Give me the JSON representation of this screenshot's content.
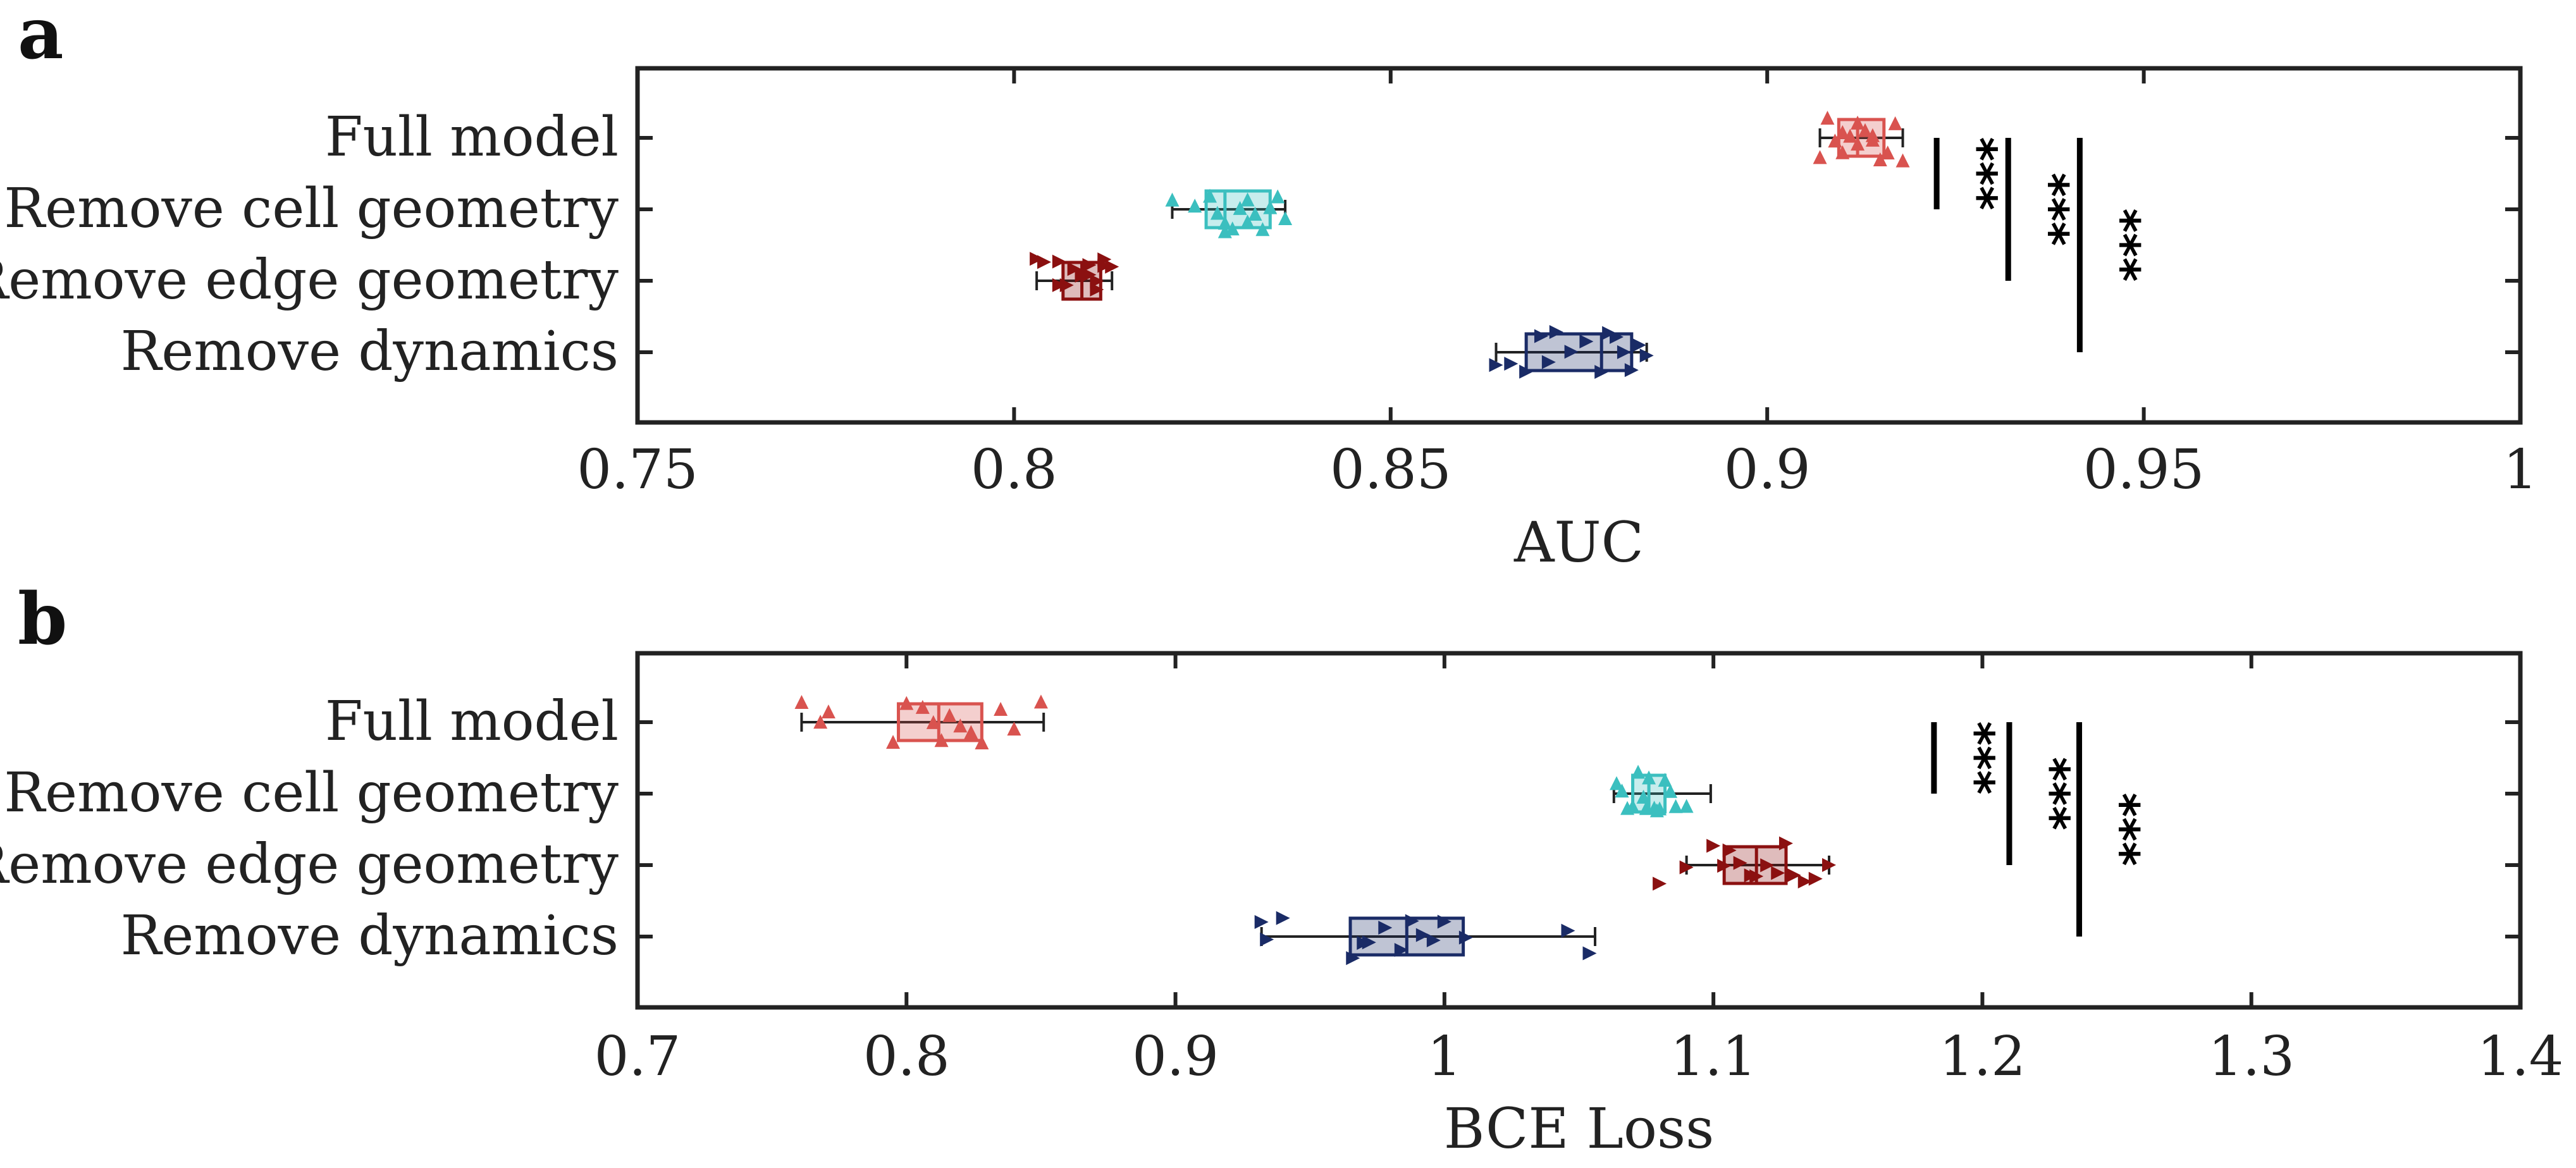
{
  "chart_data": [
    {
      "panel": "a",
      "type": "boxplot",
      "orientation": "horizontal",
      "xlabel": "AUC",
      "xlim": [
        0.75,
        1.0
      ],
      "xticks": [
        0.75,
        0.8,
        0.85,
        0.9,
        0.95,
        1.0
      ],
      "xtick_labels": [
        "0.75",
        "0.8",
        "0.85",
        "0.9",
        "0.95",
        "1"
      ],
      "categories": [
        "Full model",
        "Remove cell geometry",
        "Remove edge geometry",
        "Remove dynamics"
      ],
      "series": [
        {
          "name": "Full model",
          "color": "#d9534f",
          "marker": "triangle-up",
          "whisker_low": 0.907,
          "q1": 0.9095,
          "median": 0.912,
          "q3": 0.9155,
          "whisker_high": 0.918,
          "points": [
            0.907,
            0.908,
            0.909,
            0.91,
            0.911,
            0.912,
            0.912,
            0.913,
            0.914,
            0.915,
            0.916,
            0.917,
            0.918,
            0.91,
            0.914
          ]
        },
        {
          "name": "Remove cell geometry",
          "color": "#3bbfbf",
          "marker": "triangle-up",
          "whisker_low": 0.821,
          "q1": 0.8255,
          "median": 0.828,
          "q3": 0.834,
          "whisker_high": 0.836,
          "points": [
            0.821,
            0.824,
            0.826,
            0.827,
            0.828,
            0.829,
            0.83,
            0.831,
            0.832,
            0.833,
            0.834,
            0.835,
            0.836,
            0.828,
            0.831
          ]
        },
        {
          "name": "Remove edge geometry",
          "color": "#8b1010",
          "marker": "triangle-right",
          "whisker_low": 0.803,
          "q1": 0.8065,
          "median": 0.809,
          "q3": 0.8115,
          "whisker_high": 0.813,
          "points": [
            0.803,
            0.804,
            0.806,
            0.807,
            0.808,
            0.809,
            0.809,
            0.81,
            0.811,
            0.812,
            0.812,
            0.813,
            0.806,
            0.81,
            0.811
          ]
        },
        {
          "name": "Remove dynamics",
          "color": "#1a2b66",
          "marker": "triangle-right",
          "whisker_low": 0.864,
          "q1": 0.868,
          "median": 0.878,
          "q3": 0.882,
          "whisker_high": 0.884,
          "points": [
            0.864,
            0.866,
            0.868,
            0.87,
            0.872,
            0.874,
            0.876,
            0.878,
            0.879,
            0.88,
            0.881,
            0.882,
            0.883,
            0.884,
            0.871
          ]
        }
      ],
      "significance": [
        {
          "from": "Full model",
          "to": "Remove cell geometry",
          "x": 0.9225,
          "label": "***"
        },
        {
          "from": "Full model",
          "to": "Remove edge geometry",
          "x": 0.932,
          "label": "***"
        },
        {
          "from": "Full model",
          "to": "Remove dynamics",
          "x": 0.9415,
          "label": "***"
        }
      ]
    },
    {
      "panel": "b",
      "type": "boxplot",
      "orientation": "horizontal",
      "xlabel": "BCE Loss",
      "xlim": [
        0.7,
        1.4
      ],
      "xticks": [
        0.7,
        0.8,
        0.9,
        1.0,
        1.1,
        1.2,
        1.3,
        1.4
      ],
      "xtick_labels": [
        "0.7",
        "0.8",
        "0.9",
        "1",
        "1.1",
        "1.2",
        "1.3",
        "1.4"
      ],
      "categories": [
        "Full model",
        "Remove cell geometry",
        "Remove edge geometry",
        "Remove dynamics"
      ],
      "series": [
        {
          "name": "Full model",
          "color": "#d9534f",
          "marker": "triangle-up",
          "whisker_low": 0.761,
          "q1": 0.797,
          "median": 0.812,
          "q3": 0.828,
          "whisker_high": 0.851,
          "points": [
            0.761,
            0.768,
            0.771,
            0.795,
            0.8,
            0.806,
            0.81,
            0.813,
            0.816,
            0.82,
            0.824,
            0.828,
            0.835,
            0.84,
            0.85
          ]
        },
        {
          "name": "Remove cell geometry",
          "color": "#3bbfbf",
          "marker": "triangle-up",
          "whisker_low": 1.063,
          "q1": 1.07,
          "median": 1.076,
          "q3": 1.082,
          "whisker_high": 1.099,
          "points": [
            1.064,
            1.066,
            1.068,
            1.07,
            1.072,
            1.074,
            1.075,
            1.076,
            1.078,
            1.08,
            1.082,
            1.084,
            1.086,
            1.09,
            1.079
          ]
        },
        {
          "name": "Remove edge geometry",
          "color": "#8b1010",
          "marker": "triangle-right",
          "whisker_low": 1.09,
          "q1": 1.104,
          "median": 1.116,
          "q3": 1.127,
          "whisker_high": 1.143,
          "points": [
            1.08,
            1.09,
            1.1,
            1.104,
            1.106,
            1.11,
            1.114,
            1.116,
            1.12,
            1.124,
            1.127,
            1.13,
            1.134,
            1.138,
            1.143
          ]
        },
        {
          "name": "Remove dynamics",
          "color": "#1a2b66",
          "marker": "triangle-right",
          "whisker_low": 0.932,
          "q1": 0.965,
          "median": 0.986,
          "q3": 1.007,
          "whisker_high": 1.056,
          "points": [
            0.932,
            0.934,
            0.94,
            0.966,
            0.972,
            0.978,
            0.984,
            0.988,
            0.992,
            0.996,
            1.0,
            1.008,
            1.046,
            1.054,
            0.97
          ]
        }
      ],
      "significance": [
        {
          "from": "Full model",
          "to": "Remove cell geometry",
          "x": 1.182,
          "label": "***"
        },
        {
          "from": "Full model",
          "to": "Remove edge geometry",
          "x": 1.21,
          "label": "***"
        },
        {
          "from": "Full model",
          "to": "Remove dynamics",
          "x": 1.236,
          "label": "***"
        }
      ]
    }
  ]
}
